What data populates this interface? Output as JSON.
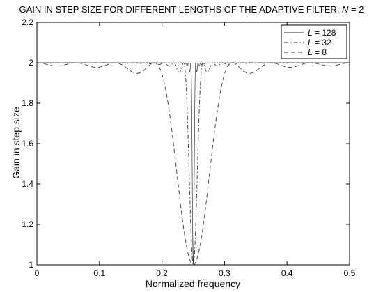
{
  "chart_data": {
    "type": "line",
    "title": {
      "main": "GAIN IN STEP SIZE FOR DIFFERENT LENGTHS OF THE ADAPTIVE FILTER.",
      "n_var": "N",
      "n_eq": " = 2"
    },
    "xlabel": "Normalized frequency",
    "ylabel": "Gain in step size",
    "xlim": [
      0,
      0.5
    ],
    "ylim": [
      1,
      2.2
    ],
    "xticks": [
      0,
      0.1,
      0.2,
      0.3,
      0.4,
      0.5
    ],
    "xtick_labels": [
      "0",
      "0.1",
      "0.2",
      "0.3",
      "0.4",
      "0.5"
    ],
    "yticks": [
      1,
      1.2,
      1.4,
      1.6,
      1.8,
      2,
      2.2
    ],
    "ytick_labels": [
      "1",
      "1.2",
      "1.4",
      "1.6",
      "1.8",
      "2",
      "2.2"
    ],
    "grid": false,
    "legend_position": "top-right",
    "series": [
      {
        "name": "128",
        "var": "L",
        "eq": " = ",
        "style": "solid",
        "L": 128
      },
      {
        "name": "32",
        "var": "L",
        "eq": " = ",
        "style": "dashdot",
        "L": 32
      },
      {
        "name": "8",
        "var": "L",
        "eq": " = ",
        "style": "dashed",
        "L": 8
      }
    ]
  }
}
